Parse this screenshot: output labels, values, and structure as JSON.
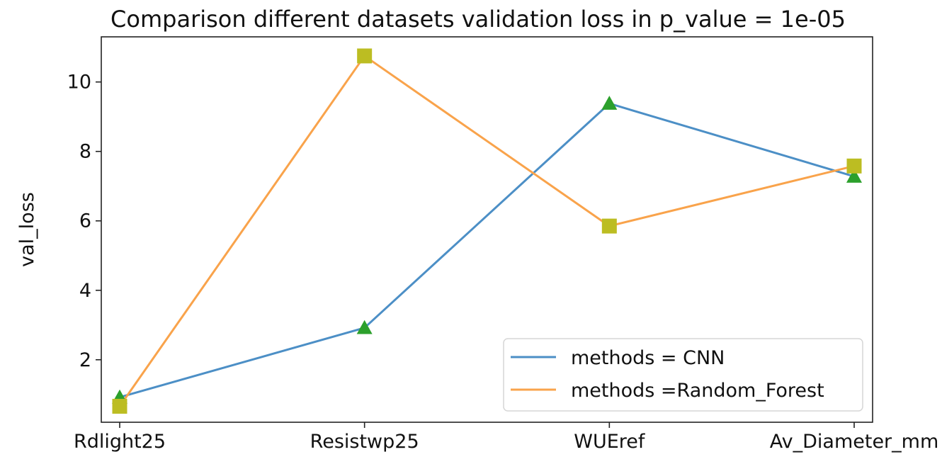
{
  "chart_data": {
    "type": "line",
    "title": "Comparison different datasets validation loss in p_value = 1e-05",
    "xlabel": "",
    "ylabel": "val_loss",
    "categories": [
      "Rdlight25",
      "Resistwp25",
      "WUEref",
      "Av_Diameter_mm"
    ],
    "yticks": [
      2,
      4,
      6,
      8,
      10
    ],
    "ylim": [
      0.2,
      11.3
    ],
    "grid": false,
    "legend_position": "bottom-right",
    "series": [
      {
        "name": "methods = CNN",
        "values": [
          0.92,
          2.92,
          9.38,
          7.28
        ],
        "line_color": "#4c8fc6",
        "marker": "triangle",
        "marker_color": "#2ca02c"
      },
      {
        "name": "methods =Random_Forest",
        "values": [
          0.66,
          10.75,
          5.85,
          7.58
        ],
        "line_color": "#f9a34b",
        "marker": "square",
        "marker_color": "#bcbd22"
      }
    ]
  }
}
